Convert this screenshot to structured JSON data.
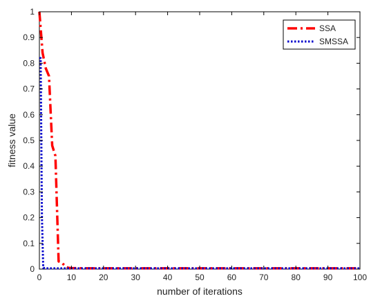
{
  "chart_data": {
    "type": "line",
    "title": "",
    "xlabel": "number of iterations",
    "ylabel": "fitness value",
    "xlim": [
      0,
      100
    ],
    "ylim": [
      0,
      1
    ],
    "xticks": [
      "0",
      "10",
      "20",
      "30",
      "40",
      "50",
      "60",
      "70",
      "80",
      "90",
      "100"
    ],
    "yticks": [
      "0",
      "0.1",
      "0.2",
      "0.3",
      "0.4",
      "0.5",
      "0.6",
      "0.7",
      "0.8",
      "0.9",
      "1"
    ],
    "grid": false,
    "legend_position": "top-right",
    "series": [
      {
        "name": "SSA",
        "color": "#ff0000",
        "style": "dash-dot",
        "x": [
          0,
          1,
          2,
          3,
          4,
          5,
          6,
          7,
          8,
          9,
          10,
          15,
          20,
          30,
          40,
          50,
          60,
          70,
          80,
          90,
          100
        ],
        "y": [
          1.0,
          0.84,
          0.78,
          0.75,
          0.48,
          0.44,
          0.03,
          0.025,
          0.012,
          0.005,
          0.004,
          0.003,
          0.003,
          0.003,
          0.003,
          0.003,
          0.003,
          0.003,
          0.003,
          0.003,
          0.003
        ]
      },
      {
        "name": "SMSSA",
        "color": "#0000cc",
        "style": "dotted",
        "x": [
          0,
          0.4,
          0.8,
          1.2,
          2,
          5,
          10,
          20,
          30,
          40,
          50,
          60,
          70,
          80,
          90,
          100
        ],
        "y": [
          0.82,
          0.82,
          0.2,
          0.005,
          0.003,
          0.003,
          0.003,
          0.003,
          0.003,
          0.003,
          0.003,
          0.003,
          0.003,
          0.003,
          0.003,
          0.003
        ]
      }
    ]
  }
}
